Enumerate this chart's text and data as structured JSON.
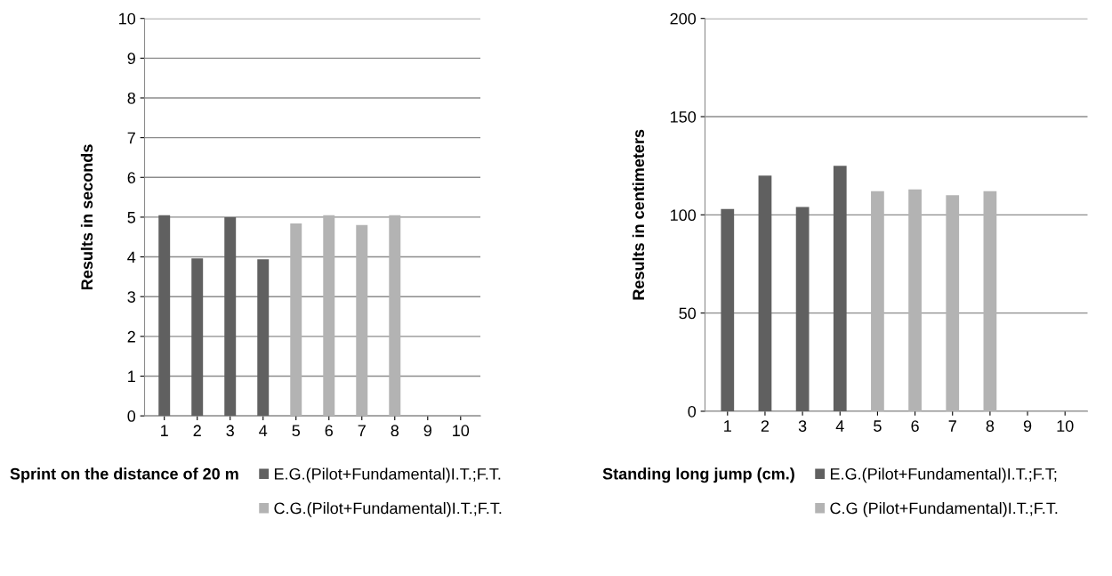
{
  "chart_data": [
    {
      "type": "bar",
      "ylabel": "Results in seconds",
      "legend_title": "Sprint on the distance of 20 m",
      "categories": [
        "1",
        "2",
        "3",
        "4",
        "5",
        "6",
        "7",
        "8",
        "9",
        "10"
      ],
      "ylim": [
        0,
        10
      ],
      "yticks": [
        0,
        1,
        2,
        3,
        4,
        5,
        6,
        7,
        8,
        9,
        10
      ],
      "grid": "y",
      "legend": "bottom",
      "series": [
        {
          "name": "E.G.(Pilot+Fundamental)I.T.;F.T.",
          "color": "#606060",
          "values": [
            5.05,
            3.96,
            5.0,
            3.94,
            null,
            null,
            null,
            null,
            null,
            null
          ]
        },
        {
          "name": "C.G.(Pilot+Fundamental)I.T.;F.T.",
          "color": "#b3b3b3",
          "values": [
            null,
            null,
            null,
            null,
            4.84,
            5.05,
            4.8,
            5.05,
            null,
            null
          ]
        }
      ]
    },
    {
      "type": "bar",
      "ylabel": "Results in centimeters",
      "legend_title": "Standing long jump (cm.)",
      "categories": [
        "1",
        "2",
        "3",
        "4",
        "5",
        "6",
        "7",
        "8",
        "9",
        "10"
      ],
      "ylim": [
        0,
        200
      ],
      "yticks": [
        0,
        50,
        100,
        150,
        200
      ],
      "grid": "y",
      "legend": "bottom",
      "series": [
        {
          "name": "E.G.(Pilot+Fundamental)I.T.;F.T;",
          "color": "#606060",
          "values": [
            103,
            120,
            104,
            125,
            null,
            null,
            null,
            null,
            null,
            null
          ]
        },
        {
          "name": "C.G (Pilot+Fundamental)I.T.;F.T.",
          "color": "#b3b3b3",
          "values": [
            null,
            null,
            null,
            null,
            112,
            113,
            110,
            112,
            null,
            null
          ]
        }
      ]
    }
  ]
}
